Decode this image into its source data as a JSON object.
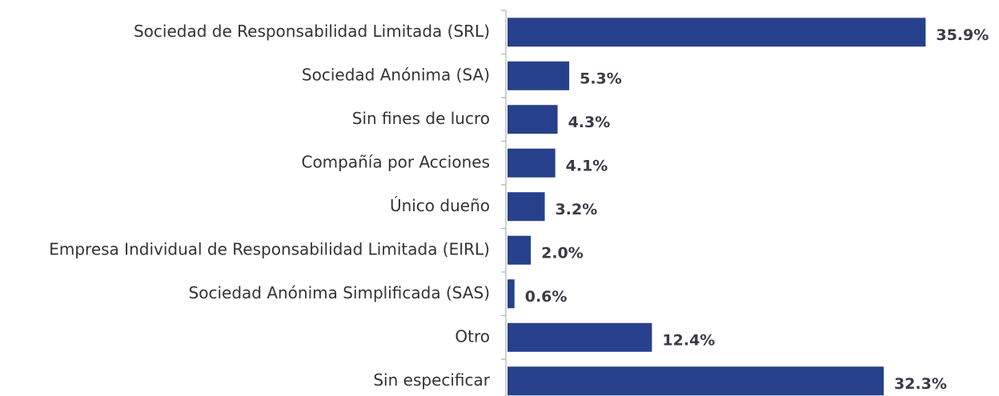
{
  "chart_data": {
    "type": "barh",
    "categories": [
      "Sociedad de Responsabilidad Limitada (SRL)",
      "Sociedad Anónima (SA)",
      "Sin fines de lucro",
      "Compañía por Acciones",
      "Único dueño",
      "Empresa Individual de Responsabilidad Limitada (EIRL)",
      "Sociedad Anónima Simplificada (SAS)",
      "Otro",
      "Sin especificar"
    ],
    "values": [
      35.9,
      5.3,
      4.3,
      4.1,
      3.2,
      2.0,
      0.6,
      12.4,
      32.3
    ],
    "value_labels": [
      "35.9%",
      "5.3%",
      "4.3%",
      "4.1%",
      "3.2%",
      "2.0%",
      "0.6%",
      "12.4%",
      "32.3%"
    ],
    "color": "#27408b",
    "xlim": [
      0,
      40
    ]
  }
}
